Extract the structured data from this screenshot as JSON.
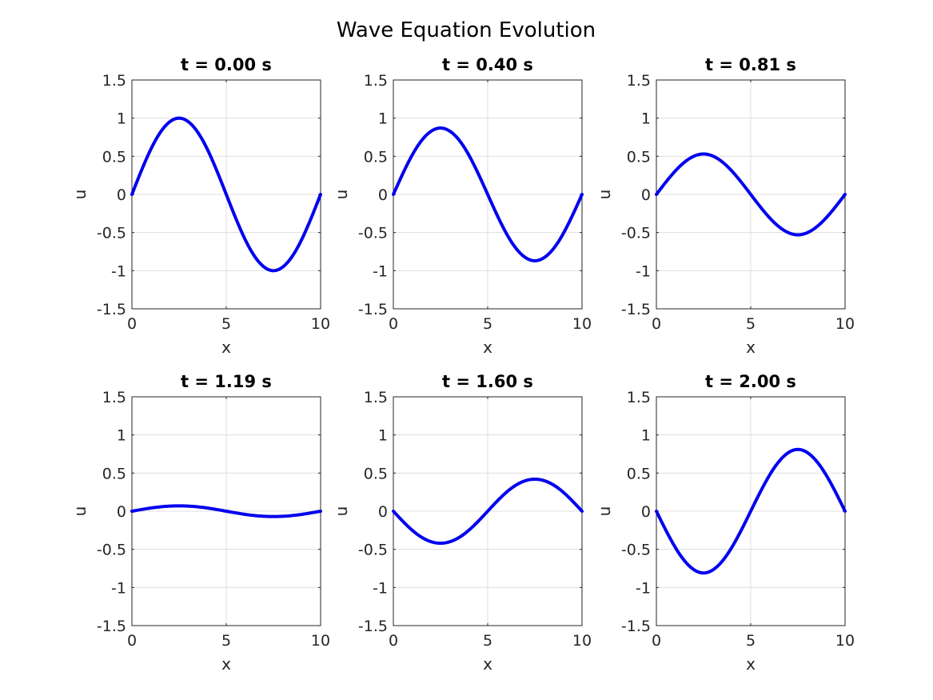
{
  "figure_title": "Wave Equation Evolution",
  "colors": {
    "line": "#0000ee",
    "axis": "#262626",
    "grid": "#dfdfdf"
  },
  "chart_data": [
    {
      "type": "line",
      "title": "t = 0.00 s",
      "xlabel": "x",
      "ylabel": "u",
      "xlim": [
        0,
        10
      ],
      "ylim": [
        -1.5,
        1.5
      ],
      "xticks": [
        "0",
        "5",
        "10"
      ],
      "yticks": [
        "-1.5",
        "-1",
        "-0.5",
        "0",
        "0.5",
        "1",
        "1.5"
      ],
      "grid": true,
      "series": [
        {
          "x": [
            0,
            1.25,
            2.5,
            3.75,
            5,
            6.25,
            7.5,
            8.75,
            10
          ],
          "values": [
            0,
            0.71,
            1.0,
            0.71,
            0,
            -0.71,
            -1.0,
            -0.71,
            0
          ]
        }
      ]
    },
    {
      "type": "line",
      "title": "t = 0.40 s",
      "xlabel": "x",
      "ylabel": "u",
      "xlim": [
        0,
        10
      ],
      "ylim": [
        -1.5,
        1.5
      ],
      "xticks": [
        "0",
        "5",
        "10"
      ],
      "yticks": [
        "-1.5",
        "-1",
        "-0.5",
        "0",
        "0.5",
        "1",
        "1.5"
      ],
      "grid": true,
      "series": [
        {
          "x": [
            0,
            1.25,
            2.5,
            3.75,
            5,
            6.25,
            7.5,
            8.75,
            10
          ],
          "values": [
            0,
            0.62,
            0.87,
            0.62,
            0,
            -0.62,
            -0.87,
            -0.62,
            0
          ]
        }
      ]
    },
    {
      "type": "line",
      "title": "t = 0.81 s",
      "xlabel": "x",
      "ylabel": "u",
      "xlim": [
        0,
        10
      ],
      "ylim": [
        -1.5,
        1.5
      ],
      "xticks": [
        "0",
        "5",
        "10"
      ],
      "yticks": [
        "-1.5",
        "-1",
        "-0.5",
        "0",
        "0.5",
        "1",
        "1.5"
      ],
      "grid": true,
      "series": [
        {
          "x": [
            0,
            1.25,
            2.5,
            3.75,
            5,
            6.25,
            7.5,
            8.75,
            10
          ],
          "values": [
            0,
            0.37,
            0.53,
            0.37,
            0,
            -0.37,
            -0.53,
            -0.37,
            0
          ]
        }
      ]
    },
    {
      "type": "line",
      "title": "t = 1.19 s",
      "xlabel": "x",
      "ylabel": "u",
      "xlim": [
        0,
        10
      ],
      "ylim": [
        -1.5,
        1.5
      ],
      "xticks": [
        "0",
        "5",
        "10"
      ],
      "yticks": [
        "-1.5",
        "-1",
        "-0.5",
        "0",
        "0.5",
        "1",
        "1.5"
      ],
      "grid": true,
      "series": [
        {
          "x": [
            0,
            1.25,
            2.5,
            3.75,
            5,
            6.25,
            7.5,
            8.75,
            10
          ],
          "values": [
            0,
            0.05,
            0.07,
            0.05,
            0,
            -0.05,
            -0.07,
            -0.05,
            0
          ]
        }
      ]
    },
    {
      "type": "line",
      "title": "t = 1.60 s",
      "xlabel": "x",
      "ylabel": "u",
      "xlim": [
        0,
        10
      ],
      "ylim": [
        -1.5,
        1.5
      ],
      "xticks": [
        "0",
        "5",
        "10"
      ],
      "yticks": [
        "-1.5",
        "-1",
        "-0.5",
        "0",
        "0.5",
        "1",
        "1.5"
      ],
      "grid": true,
      "series": [
        {
          "x": [
            0,
            1.25,
            2.5,
            3.75,
            5,
            6.25,
            7.5,
            8.75,
            10
          ],
          "values": [
            0,
            -0.3,
            -0.42,
            -0.3,
            0,
            0.3,
            0.42,
            0.3,
            0
          ]
        }
      ]
    },
    {
      "type": "line",
      "title": "t = 2.00 s",
      "xlabel": "x",
      "ylabel": "u",
      "xlim": [
        0,
        10
      ],
      "ylim": [
        -1.5,
        1.5
      ],
      "xticks": [
        "0",
        "5",
        "10"
      ],
      "yticks": [
        "-1.5",
        "-1",
        "-0.5",
        "0",
        "0.5",
        "1",
        "1.5"
      ],
      "grid": true,
      "series": [
        {
          "x": [
            0,
            1.25,
            2.5,
            3.75,
            5,
            6.25,
            7.5,
            8.75,
            10
          ],
          "values": [
            0,
            -0.57,
            -0.81,
            -0.57,
            0,
            0.57,
            0.81,
            0.57,
            0
          ]
        }
      ]
    }
  ]
}
